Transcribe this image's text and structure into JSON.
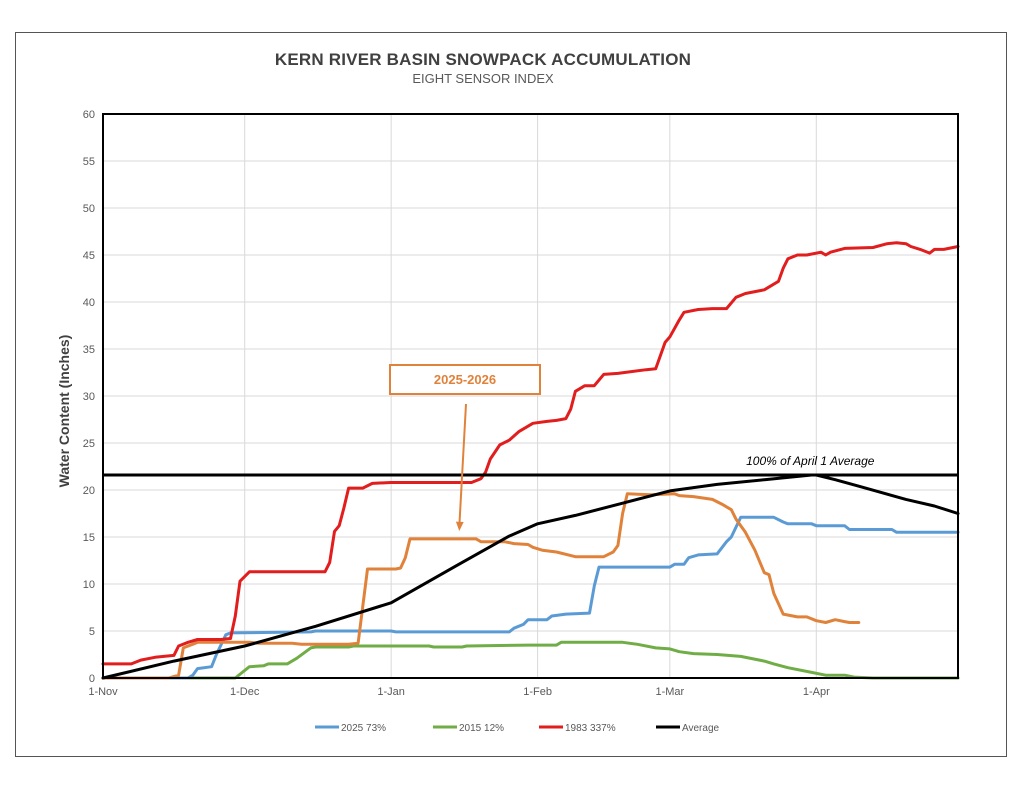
{
  "chart_data": {
    "type": "line",
    "title": "KERN RIVER BASIN SNOWPACK ACCUMULATION",
    "subtitle": "EIGHT SENSOR INDEX",
    "ylabel": "Water Content (Inches)",
    "xlabel": "",
    "ylim": [
      0,
      60
    ],
    "xlim": [
      0,
      181
    ],
    "x_unit": "days from 1-Nov",
    "y_ticks": [
      0,
      5,
      10,
      15,
      20,
      25,
      30,
      35,
      40,
      45,
      50,
      55,
      60
    ],
    "x_ticks": [
      {
        "label": "1-Nov",
        "x": 0
      },
      {
        "label": "1-Dec",
        "x": 30
      },
      {
        "label": "1-Jan",
        "x": 61
      },
      {
        "label": "1-Feb",
        "x": 92
      },
      {
        "label": "1-Mar",
        "x": 120
      },
      {
        "label": "1-Apr",
        "x": 151
      }
    ],
    "grid": true,
    "legend_position": "bottom",
    "reference_line": {
      "y": 21.6,
      "label": "100% of April 1 Average",
      "color": "#000000"
    },
    "callout": {
      "label": "2025-2026",
      "color": "#e0823a",
      "x": 75,
      "y": 15
    },
    "series": [
      {
        "name": "2025 73%",
        "color": "#5b9bd5",
        "legend": true,
        "points": [
          [
            0,
            0
          ],
          [
            18,
            0
          ],
          [
            19,
            0.3
          ],
          [
            20,
            1.0
          ],
          [
            23,
            1.2
          ],
          [
            24,
            2.5
          ],
          [
            26,
            4.6
          ],
          [
            27,
            4.8
          ],
          [
            44,
            4.9
          ],
          [
            45,
            5.0
          ],
          [
            61,
            5.0
          ],
          [
            62,
            4.9
          ],
          [
            86,
            4.9
          ],
          [
            87,
            5.3
          ],
          [
            89,
            5.7
          ],
          [
            90,
            6.2
          ],
          [
            94,
            6.2
          ],
          [
            95,
            6.6
          ],
          [
            98,
            6.8
          ],
          [
            103,
            6.9
          ],
          [
            104,
            9.8
          ],
          [
            105,
            11.8
          ],
          [
            120,
            11.8
          ],
          [
            121,
            12.1
          ],
          [
            123,
            12.1
          ],
          [
            124,
            12.8
          ],
          [
            126,
            13.1
          ],
          [
            130,
            13.2
          ],
          [
            132,
            14.5
          ],
          [
            133,
            15.0
          ],
          [
            135,
            17.1
          ],
          [
            142,
            17.1
          ],
          [
            144,
            16.6
          ],
          [
            145,
            16.4
          ],
          [
            150,
            16.4
          ],
          [
            151,
            16.2
          ],
          [
            157,
            16.2
          ],
          [
            158,
            15.8
          ],
          [
            167,
            15.8
          ],
          [
            168,
            15.5
          ],
          [
            181,
            15.5
          ]
        ]
      },
      {
        "name": "2015 12%",
        "color": "#70ad47",
        "legend": true,
        "points": [
          [
            0,
            0
          ],
          [
            28,
            0
          ],
          [
            31,
            1.2
          ],
          [
            34,
            1.3
          ],
          [
            35,
            1.5
          ],
          [
            39,
            1.5
          ],
          [
            41,
            2.1
          ],
          [
            44,
            3.2
          ],
          [
            45,
            3.3
          ],
          [
            52,
            3.3
          ],
          [
            53,
            3.4
          ],
          [
            69,
            3.4
          ],
          [
            70,
            3.3
          ],
          [
            76,
            3.3
          ],
          [
            77,
            3.4
          ],
          [
            90,
            3.5
          ],
          [
            96,
            3.5
          ],
          [
            97,
            3.8
          ],
          [
            110,
            3.8
          ],
          [
            113,
            3.6
          ],
          [
            117,
            3.2
          ],
          [
            120,
            3.1
          ],
          [
            122,
            2.8
          ],
          [
            125,
            2.6
          ],
          [
            130,
            2.5
          ],
          [
            135,
            2.3
          ],
          [
            140,
            1.8
          ],
          [
            142,
            1.5
          ],
          [
            145,
            1.1
          ],
          [
            150,
            0.6
          ],
          [
            153,
            0.3
          ],
          [
            157,
            0.3
          ],
          [
            159,
            0.1
          ],
          [
            163,
            0
          ],
          [
            181,
            0
          ]
        ]
      },
      {
        "name": "1983 337%",
        "color": "#e21d1d",
        "legend": true,
        "points": [
          [
            0,
            1.5
          ],
          [
            6,
            1.5
          ],
          [
            8,
            1.9
          ],
          [
            11,
            2.2
          ],
          [
            15,
            2.4
          ],
          [
            16,
            3.4
          ],
          [
            18,
            3.8
          ],
          [
            20,
            4.1
          ],
          [
            25,
            4.1
          ],
          [
            27,
            4.2
          ],
          [
            28,
            6.6
          ],
          [
            29,
            10.3
          ],
          [
            31,
            11.3
          ],
          [
            47,
            11.3
          ],
          [
            48,
            12.3
          ],
          [
            49,
            15.6
          ],
          [
            50,
            16.2
          ],
          [
            51,
            18.1
          ],
          [
            52,
            20.2
          ],
          [
            55,
            20.2
          ],
          [
            57,
            20.7
          ],
          [
            61,
            20.8
          ],
          [
            78,
            20.8
          ],
          [
            80,
            21.2
          ],
          [
            81,
            21.9
          ],
          [
            82,
            23.3
          ],
          [
            84,
            24.8
          ],
          [
            86,
            25.3
          ],
          [
            88,
            26.2
          ],
          [
            91,
            27.1
          ],
          [
            94,
            27.3
          ],
          [
            96,
            27.4
          ],
          [
            98,
            27.6
          ],
          [
            99,
            28.6
          ],
          [
            100,
            30.5
          ],
          [
            102,
            31.1
          ],
          [
            104,
            31.1
          ],
          [
            106,
            32.3
          ],
          [
            109,
            32.4
          ],
          [
            115,
            32.8
          ],
          [
            117,
            32.9
          ],
          [
            119,
            35.7
          ],
          [
            120,
            36.3
          ],
          [
            122,
            38.1
          ],
          [
            123,
            38.9
          ],
          [
            126,
            39.2
          ],
          [
            129,
            39.3
          ],
          [
            132,
            39.3
          ],
          [
            134,
            40.5
          ],
          [
            136,
            40.9
          ],
          [
            140,
            41.3
          ],
          [
            143,
            42.2
          ],
          [
            144,
            43.6
          ],
          [
            145,
            44.6
          ],
          [
            147,
            45.0
          ],
          [
            149,
            45.0
          ],
          [
            152,
            45.3
          ],
          [
            153,
            45.0
          ],
          [
            154,
            45.3
          ],
          [
            157,
            45.7
          ],
          [
            163,
            45.8
          ],
          [
            166,
            46.2
          ],
          [
            168,
            46.3
          ],
          [
            170,
            46.2
          ],
          [
            171,
            45.9
          ],
          [
            173,
            45.6
          ],
          [
            175,
            45.2
          ],
          [
            176,
            45.6
          ],
          [
            178,
            45.6
          ],
          [
            181,
            45.9
          ]
        ]
      },
      {
        "name": "Average",
        "color": "#000000",
        "legend": true,
        "points": [
          [
            0,
            0
          ],
          [
            15,
            1.8
          ],
          [
            30,
            3.4
          ],
          [
            45,
            5.5
          ],
          [
            61,
            8.0
          ],
          [
            75,
            12.0
          ],
          [
            86,
            15.1
          ],
          [
            92,
            16.4
          ],
          [
            100,
            17.3
          ],
          [
            110,
            18.6
          ],
          [
            120,
            19.9
          ],
          [
            130,
            20.6
          ],
          [
            140,
            21.1
          ],
          [
            150,
            21.6
          ],
          [
            151,
            21.6
          ],
          [
            155,
            21.1
          ],
          [
            160,
            20.4
          ],
          [
            170,
            19.0
          ],
          [
            176,
            18.3
          ],
          [
            181,
            17.5
          ]
        ]
      },
      {
        "name": "2025-2026",
        "color": "#e0823a",
        "legend": false,
        "points": [
          [
            0,
            0
          ],
          [
            14,
            0
          ],
          [
            16,
            0.3
          ],
          [
            17,
            3.2
          ],
          [
            19,
            3.6
          ],
          [
            20,
            3.8
          ],
          [
            27,
            3.8
          ],
          [
            31,
            3.8
          ],
          [
            33,
            3.7
          ],
          [
            40,
            3.7
          ],
          [
            42,
            3.6
          ],
          [
            52,
            3.6
          ],
          [
            54,
            3.7
          ],
          [
            56,
            11.6
          ],
          [
            58,
            11.6
          ],
          [
            62,
            11.6
          ],
          [
            63,
            11.7
          ],
          [
            64,
            12.8
          ],
          [
            65,
            14.8
          ],
          [
            79,
            14.8
          ],
          [
            80,
            14.5
          ],
          [
            85,
            14.5
          ],
          [
            87,
            14.3
          ],
          [
            90,
            14.2
          ],
          [
            91,
            13.9
          ],
          [
            93,
            13.6
          ],
          [
            96,
            13.4
          ],
          [
            100,
            12.9
          ],
          [
            106,
            12.9
          ],
          [
            108,
            13.4
          ],
          [
            109,
            14.1
          ],
          [
            110,
            17.5
          ],
          [
            111,
            19.6
          ],
          [
            116,
            19.5
          ],
          [
            121,
            19.6
          ],
          [
            122,
            19.4
          ],
          [
            125,
            19.3
          ],
          [
            129,
            19.0
          ],
          [
            131,
            18.5
          ],
          [
            133,
            17.9
          ],
          [
            134,
            16.9
          ],
          [
            136,
            15.5
          ],
          [
            138,
            13.6
          ],
          [
            140,
            11.2
          ],
          [
            141,
            11.0
          ],
          [
            142,
            9.0
          ],
          [
            143,
            7.9
          ],
          [
            144,
            6.8
          ],
          [
            147,
            6.5
          ],
          [
            149,
            6.5
          ],
          [
            151,
            6.1
          ],
          [
            153,
            5.9
          ],
          [
            155,
            6.2
          ],
          [
            157,
            6.0
          ],
          [
            158,
            5.9
          ],
          [
            160,
            5.9
          ]
        ]
      }
    ]
  }
}
